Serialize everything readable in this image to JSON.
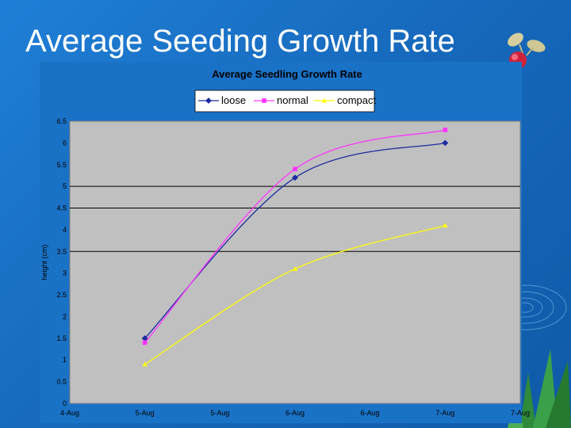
{
  "slide": {
    "title": "Average Seeding Growth Rate"
  },
  "icons": {
    "corner_art": "radish-seedling-icon",
    "decoration": "water-ripple-icon"
  },
  "chart_data": {
    "type": "line",
    "title": "Average Seedling Growth Rate",
    "xlabel": "",
    "ylabel": "height (cm)",
    "x_ticks": [
      "4-Aug",
      "5-Aug",
      "5-Aug",
      "6-Aug",
      "6-Aug",
      "7-Aug",
      "7-Aug"
    ],
    "y_ticks": [
      "0",
      "0.5",
      "1",
      "1.5",
      "2",
      "2.5",
      "3",
      "3.5",
      "4",
      "4.5",
      "5",
      "5.5",
      "6",
      "6.5"
    ],
    "ylim": [
      0,
      6.5
    ],
    "x_range": [
      0,
      6
    ],
    "y_gridlines": [
      3.5,
      4.5,
      5
    ],
    "grid": true,
    "legend_position": "top",
    "series": [
      {
        "name": "loose",
        "color": "#1c2aa0",
        "marker": "diamond",
        "x": [
          1,
          3,
          5
        ],
        "values": [
          1.5,
          5.2,
          6.0
        ]
      },
      {
        "name": "normal",
        "color": "#ff33ff",
        "marker": "square",
        "x": [
          1,
          3,
          5
        ],
        "values": [
          1.4,
          5.4,
          6.3
        ]
      },
      {
        "name": "compact",
        "color": "#ffff00",
        "marker": "triangle",
        "x": [
          1,
          3,
          5
        ],
        "values": [
          0.9,
          3.1,
          4.1
        ]
      }
    ]
  }
}
